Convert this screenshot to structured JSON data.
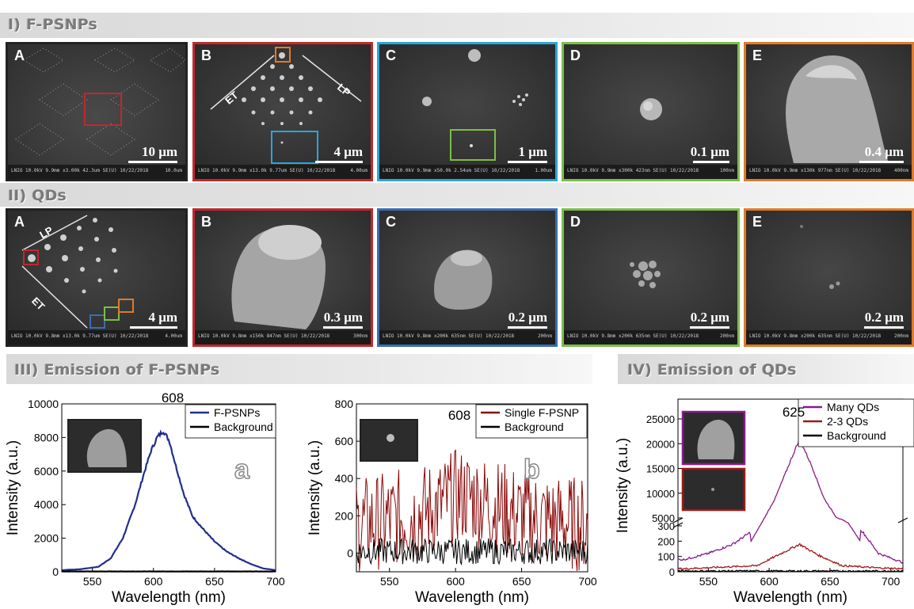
{
  "sections": {
    "s1": "I) F-PSNPs",
    "s2": "II) QDs",
    "s3": "III) Emission of F-PSNPs",
    "s4": "IV) Emission of QDs"
  },
  "row1": [
    {
      "letter": "A",
      "scale": "10 μm",
      "meta": "LNIO 10.0kV 9.9mm x3.00k 42.3um SE(U) 10/22/2018",
      "tick": "10.0um",
      "border": "#222222"
    },
    {
      "letter": "B",
      "scale": "4 μm",
      "meta": "LNIO 10.0kV 9.9mm x13.0k 9.77um SE(U) 10/22/2018",
      "tick": "4.00um",
      "border": "#c0282c",
      "label_et": "ET",
      "label_lp": "LP"
    },
    {
      "letter": "C",
      "scale": "1 μm",
      "meta": "LNIO 10.0kV 9.9mm x50.0k 2.54um SE(U) 10/22/2018",
      "tick": "1.00um",
      "border": "#2aa6d9"
    },
    {
      "letter": "D",
      "scale": "0.1 μm",
      "meta": "LNIO 10.0kV 9.9mm x300k 423nm SE(U) 10/22/2018",
      "tick": "100nm",
      "border": "#7cbd4a"
    },
    {
      "letter": "E",
      "scale": "0.4 μm",
      "meta": "LNIO 10.0kV 9.9mm x130k 977nm SE(U) 10/22/2018",
      "tick": "400nm",
      "border": "#e07a2a"
    }
  ],
  "row2": [
    {
      "letter": "A",
      "scale": "4 μm",
      "meta": "LNIO 10.0kV 9.8mm x13.0k 9.77um SE(U) 10/22/2018",
      "tick": "4.00um",
      "border": "#222222",
      "label_et": "ET",
      "label_lp": "LP"
    },
    {
      "letter": "B",
      "scale": "0.3 μm",
      "meta": "LNIO 10.0kV 9.8mm x150k 847nm SE(U) 10/22/2018",
      "tick": "300nm",
      "border": "#c0282c"
    },
    {
      "letter": "C",
      "scale": "0.2 μm",
      "meta": "LNIO 10.0kV 9.8mm x200k 635nm SE(U) 10/22/2018",
      "tick": "200nm",
      "border": "#3a6db0"
    },
    {
      "letter": "D",
      "scale": "0.2 μm",
      "meta": "LNIO 10.0kV 9.8mm x200k 635nm SE(U) 10/22/2018",
      "tick": "200nm",
      "border": "#7cbd4a"
    },
    {
      "letter": "E",
      "scale": "0.2 μm",
      "meta": "LNIO 10.0kV 9.8mm x200k 635nm SE(U) 10/22/2018",
      "tick": "200nm",
      "border": "#e07a2a"
    }
  ],
  "chart_data": [
    {
      "type": "line",
      "panel_label": "a",
      "xlabel": "Wavelength (nm)",
      "ylabel": "Intensity (a.u.)",
      "xlim": [
        525,
        700
      ],
      "ylim": [
        0,
        10000
      ],
      "xticks": [
        550,
        600,
        650,
        700
      ],
      "yticks": [
        0,
        2000,
        4000,
        6000,
        8000,
        10000
      ],
      "peak_label": "608",
      "legend_placement": "top-right",
      "series": [
        {
          "name": "F-PSNPs",
          "color": "#1f2f8f",
          "x": [
            525,
            540,
            555,
            565,
            575,
            585,
            592,
            598,
            603,
            608,
            613,
            618,
            625,
            632,
            640,
            650,
            660,
            670,
            680,
            690,
            700
          ],
          "y": [
            100,
            150,
            300,
            800,
            2000,
            4000,
            5800,
            7200,
            8000,
            8400,
            7800,
            6400,
            4600,
            3300,
            2600,
            1800,
            1200,
            800,
            450,
            200,
            100
          ]
        },
        {
          "name": "Background",
          "color": "#000000",
          "x": [
            525,
            700
          ],
          "y": [
            20,
            20
          ]
        }
      ]
    },
    {
      "type": "line",
      "panel_label": "b",
      "xlabel": "Wavelength (nm)",
      "ylabel": "Intensity (a.u.)",
      "xlim": [
        525,
        700
      ],
      "ylim": [
        -100,
        800
      ],
      "xticks": [
        550,
        600,
        650,
        700
      ],
      "yticks": [
        0,
        200,
        400,
        600,
        800
      ],
      "peak_label": "608",
      "legend_placement": "top-right",
      "series": [
        {
          "name": "Single F-PSNP",
          "color": "#8b0a0a",
          "x": [
            525,
            550,
            575,
            590,
            600,
            608,
            615,
            630,
            650,
            675,
            700
          ],
          "y": [
            150,
            180,
            220,
            260,
            300,
            310,
            290,
            250,
            200,
            170,
            150
          ],
          "noise": 260
        },
        {
          "name": "Background",
          "color": "#000000",
          "x": [
            525,
            700
          ],
          "y": [
            10,
            10
          ],
          "noise": 70
        }
      ]
    },
    {
      "type": "line",
      "panel_label": "",
      "xlabel": "Wavelength (nm)",
      "ylabel": "Intensity (a.u.)",
      "xlim": [
        525,
        710
      ],
      "ylim": [
        0,
        25000
      ],
      "axis_break": "between 300 and 5000",
      "xticks": [
        550,
        600,
        650,
        700
      ],
      "yticks": [
        0,
        100,
        200,
        300,
        5000,
        10000,
        15000,
        20000,
        25000
      ],
      "peak_label": "625",
      "legend_placement": "top-right",
      "series": [
        {
          "name": "Many QDs",
          "color": "#8a1a8a",
          "x": [
            530,
            550,
            570,
            585,
            595,
            605,
            615,
            625,
            635,
            645,
            655,
            665,
            675,
            690,
            710
          ],
          "y": [
            80,
            120,
            180,
            260,
            4500,
            9000,
            15000,
            21000,
            15500,
            9000,
            5200,
            4000,
            280,
            120,
            60
          ]
        },
        {
          "name": "2-3 QDs",
          "color": "#a01818",
          "x": [
            530,
            560,
            590,
            610,
            625,
            640,
            660,
            690,
            710
          ],
          "y": [
            20,
            30,
            40,
            120,
            180,
            110,
            40,
            25,
            20
          ]
        },
        {
          "name": "Background",
          "color": "#000000",
          "x": [
            530,
            710
          ],
          "y": [
            5,
            5
          ]
        }
      ]
    }
  ]
}
